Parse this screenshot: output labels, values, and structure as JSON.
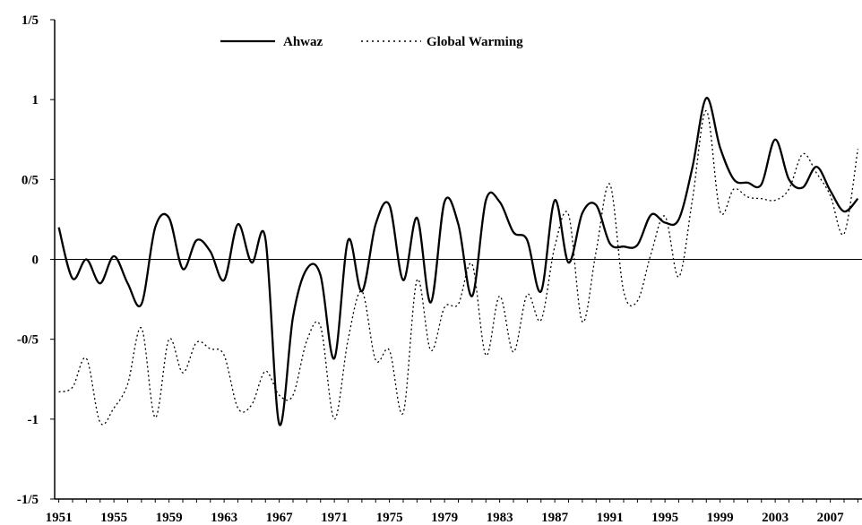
{
  "chart_data": {
    "type": "line",
    "title": "",
    "xlabel": "",
    "ylabel": "",
    "x": [
      1951,
      1952,
      1953,
      1954,
      1955,
      1956,
      1957,
      1958,
      1959,
      1960,
      1961,
      1962,
      1963,
      1964,
      1965,
      1966,
      1967,
      1968,
      1969,
      1970,
      1971,
      1972,
      1973,
      1974,
      1975,
      1976,
      1977,
      1978,
      1979,
      1980,
      1981,
      1982,
      1983,
      1984,
      1985,
      1986,
      1987,
      1988,
      1989,
      1990,
      1991,
      1992,
      1993,
      1994,
      1995,
      1996,
      1997,
      1998,
      1999,
      2000,
      2001,
      2002,
      2003,
      2004,
      2005,
      2006,
      2007,
      2008,
      2009
    ],
    "xlim": [
      1950.7,
      2009.3
    ],
    "ylim": [
      -1.5,
      1.5
    ],
    "y_ticks": [
      {
        "value": 1.5,
        "label": "1/5"
      },
      {
        "value": 1,
        "label": "1"
      },
      {
        "value": 0.5,
        "label": "0/5"
      },
      {
        "value": 0,
        "label": "0"
      },
      {
        "value": -0.5,
        "label": "-0/5"
      },
      {
        "value": -1,
        "label": "-1"
      },
      {
        "value": -1.5,
        "label": "-1/5"
      }
    ],
    "x_tick_labels": [
      "1951",
      "1955",
      "1959",
      "1963",
      "1967",
      "1971",
      "1975",
      "1979",
      "1983",
      "1987",
      "1991",
      "1995",
      "1999",
      "2003",
      "2007"
    ],
    "grid": false,
    "zero_line": true,
    "legend_position": "top",
    "series": [
      {
        "name": "Ahwaz",
        "style": "solid",
        "color": "#000000",
        "values": [
          0.2,
          -0.12,
          0.0,
          -0.15,
          0.02,
          -0.15,
          -0.28,
          0.2,
          0.26,
          -0.06,
          0.12,
          0.05,
          -0.13,
          0.22,
          -0.02,
          0.13,
          -1.03,
          -0.36,
          -0.06,
          -0.1,
          -0.62,
          0.12,
          -0.2,
          0.22,
          0.34,
          -0.13,
          0.26,
          -0.27,
          0.36,
          0.22,
          -0.23,
          0.37,
          0.36,
          0.17,
          0.12,
          -0.2,
          0.37,
          -0.02,
          0.29,
          0.34,
          0.1,
          0.08,
          0.09,
          0.28,
          0.23,
          0.25,
          0.58,
          1.01,
          0.7,
          0.5,
          0.48,
          0.47,
          0.75,
          0.5,
          0.45,
          0.58,
          0.43,
          0.3,
          0.38
        ]
      },
      {
        "name": "Global Warming",
        "style": "dotted",
        "color": "#000000",
        "values": [
          -0.83,
          -0.8,
          -0.62,
          -1.02,
          -0.93,
          -0.78,
          -0.43,
          -0.99,
          -0.5,
          -0.71,
          -0.52,
          -0.56,
          -0.6,
          -0.93,
          -0.91,
          -0.7,
          -0.85,
          -0.85,
          -0.51,
          -0.42,
          -1.0,
          -0.5,
          -0.2,
          -0.63,
          -0.57,
          -0.96,
          -0.13,
          -0.57,
          -0.3,
          -0.28,
          -0.03,
          -0.6,
          -0.23,
          -0.58,
          -0.22,
          -0.38,
          0.08,
          0.28,
          -0.39,
          0.05,
          0.47,
          -0.2,
          -0.26,
          0.04,
          0.27,
          -0.11,
          0.38,
          0.93,
          0.3,
          0.44,
          0.39,
          0.38,
          0.37,
          0.44,
          0.66,
          0.54,
          0.4,
          0.16,
          0.69
        ]
      }
    ]
  }
}
